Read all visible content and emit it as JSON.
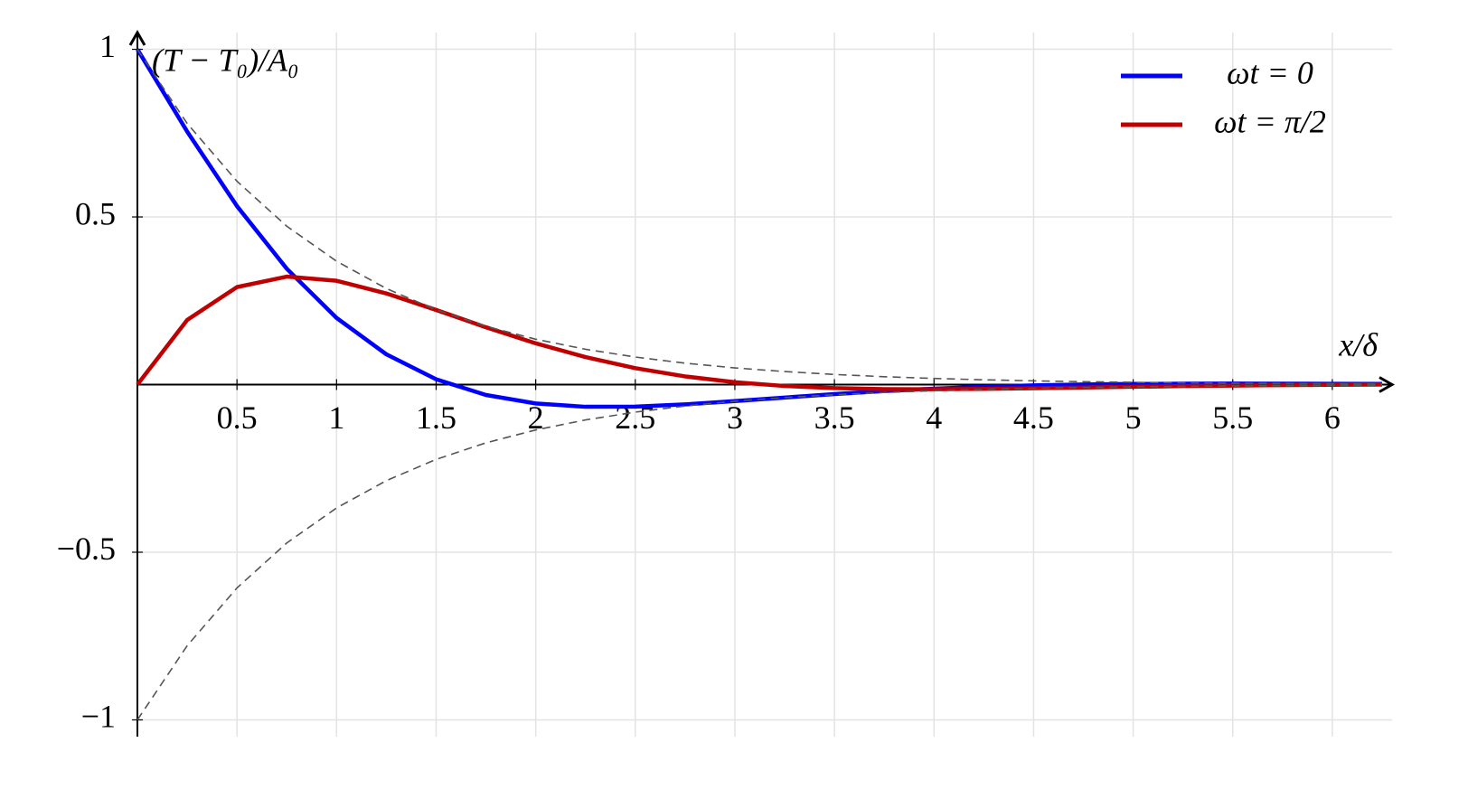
{
  "chart_data": {
    "type": "line",
    "xlabel": "x/δ",
    "ylabel": "(T − T₀)/A₀",
    "x": [
      0,
      0.25,
      0.5,
      0.75,
      1,
      1.25,
      1.5,
      1.75,
      2,
      2.25,
      2.5,
      2.75,
      3,
      3.25,
      3.5,
      3.75,
      4,
      4.25,
      4.5,
      4.75,
      5,
      5.25,
      5.5,
      5.75,
      6,
      6.25
    ],
    "series": [
      {
        "name": "ωt = 0",
        "color": "#0000ff",
        "values": [
          1,
          0.7546,
          0.5323,
          0.3456,
          0.1988,
          0.0903,
          0.0158,
          -0.031,
          -0.0563,
          -0.0662,
          -0.0658,
          -0.0591,
          -0.0493,
          -0.0386,
          -0.0283,
          -0.0193,
          -0.012,
          -0.0064,
          -0.0023,
          0.0003,
          0.0019,
          0.0027,
          0.0029,
          0.0027,
          0.0024,
          0.0019
        ]
      },
      {
        "name": "ωt = π/2",
        "color": "#c00000",
        "values": [
          0,
          0.1927,
          0.2908,
          0.322,
          0.3096,
          0.2719,
          0.2226,
          0.171,
          0.1231,
          0.082,
          0.0491,
          0.0244,
          0.007,
          -0.0042,
          -0.0106,
          -0.0134,
          -0.0139,
          -0.0128,
          -0.0109,
          -0.0086,
          -0.0065,
          -0.0045,
          -0.0029,
          -0.0016,
          -0.0007,
          -0.0001
        ]
      },
      {
        "color": "#555555",
        "dashed": true,
        "values": [
          1,
          0.7788,
          0.6065,
          0.4724,
          0.3679,
          0.2865,
          0.2231,
          0.1738,
          0.1353,
          0.1054,
          0.0821,
          0.0639,
          0.0498,
          0.0388,
          0.0302,
          0.0235,
          0.0183,
          0.0143,
          0.0111,
          0.0087,
          0.0067,
          0.0052,
          0.0041,
          0.0032,
          0.0025,
          0.0019
        ]
      },
      {
        "color": "#555555",
        "dashed": true,
        "values": [
          -1,
          -0.7788,
          -0.6065,
          -0.4724,
          -0.3679,
          -0.2865,
          -0.2231,
          -0.1738,
          -0.1353,
          -0.1054,
          -0.0821,
          -0.0639,
          -0.0498,
          -0.0388,
          -0.0302,
          -0.0235,
          -0.0183,
          -0.0143,
          -0.0111,
          -0.0087,
          -0.0067,
          -0.0052,
          -0.0041,
          -0.0032,
          -0.0025,
          -0.0019
        ]
      }
    ],
    "xlim": [
      0,
      6.3
    ],
    "ylim": [
      -1.05,
      1.05
    ],
    "xticks": [
      0.5,
      1,
      1.5,
      2,
      2.5,
      3,
      3.5,
      4,
      4.5,
      5,
      5.5,
      6
    ],
    "yticks": [
      {
        "value": -1,
        "label": "−1"
      },
      {
        "value": -0.5,
        "label": "−0.5"
      },
      0.5,
      1
    ],
    "grid": true,
    "legend": "upper right"
  }
}
